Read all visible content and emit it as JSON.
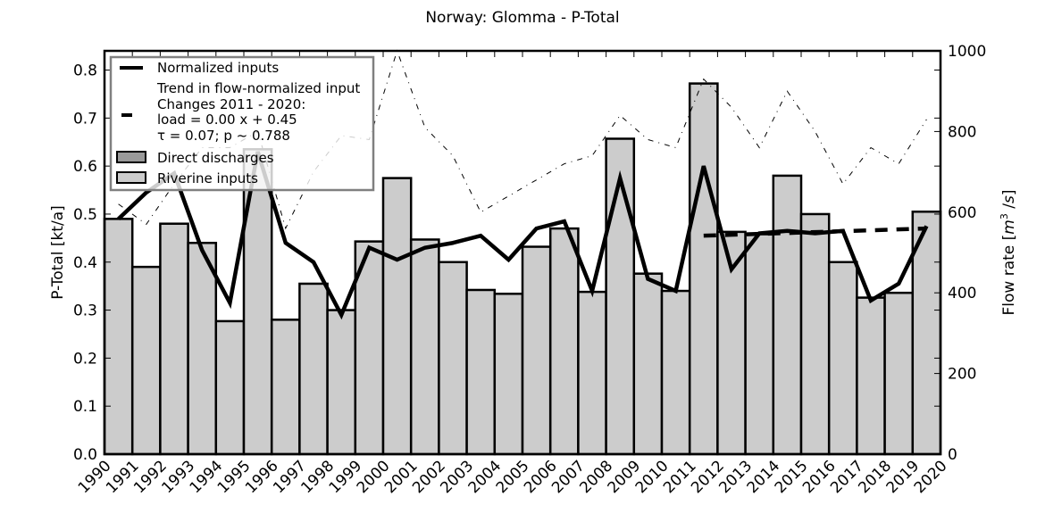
{
  "chart_data": {
    "type": "bar",
    "title": "Norway: Glomma - P-Total",
    "xlabel": "",
    "ylabel": "P-Total [kt/a]",
    "y2label": "Flow rate [m^3 /s]",
    "ylim": [
      0.0,
      0.84
    ],
    "y2lim": [
      0,
      1000
    ],
    "grid": false,
    "legend_position": "upper left",
    "x_tick_labels": [
      "1990",
      "1991",
      "1992",
      "1993",
      "1994",
      "1995",
      "1996",
      "1997",
      "1998",
      "1999",
      "2000",
      "2001",
      "2002",
      "2003",
      "2004",
      "2005",
      "2006",
      "2007",
      "2008",
      "2009",
      "2010",
      "2011",
      "2012",
      "2013",
      "2014",
      "2015",
      "2016",
      "2017",
      "2018",
      "2019",
      "2020"
    ],
    "y_ticks": [
      "0.0",
      "0.1",
      "0.2",
      "0.3",
      "0.4",
      "0.5",
      "0.6",
      "0.7",
      "0.8"
    ],
    "y2_ticks": [
      "0",
      "200",
      "400",
      "600",
      "800",
      "1000"
    ],
    "categories": [
      "1990",
      "1991",
      "1992",
      "1993",
      "1994",
      "1995",
      "1996",
      "1997",
      "1998",
      "1999",
      "2000",
      "2001",
      "2002",
      "2003",
      "2004",
      "2005",
      "2006",
      "2007",
      "2008",
      "2009",
      "2010",
      "2011",
      "2012",
      "2013",
      "2014",
      "2015",
      "2016",
      "2017",
      "2018",
      "2019"
    ],
    "series": [
      {
        "name": "Riverine inputs",
        "type": "bar",
        "axis": "left",
        "color": "#cccccc",
        "values": [
          0.49,
          0.39,
          0.48,
          0.44,
          0.277,
          0.635,
          0.28,
          0.355,
          0.3,
          0.443,
          0.575,
          0.447,
          0.4,
          0.342,
          0.334,
          0.432,
          0.47,
          0.338,
          0.657,
          0.376,
          0.34,
          0.772,
          0.463,
          0.458,
          0.58,
          0.5,
          0.4,
          0.326,
          0.336,
          0.505
        ]
      },
      {
        "name": "Direct discharges",
        "type": "bar",
        "axis": "left",
        "color": "#999999",
        "values": [
          0,
          0,
          0,
          0,
          0,
          0,
          0,
          0,
          0,
          0,
          0,
          0,
          0,
          0,
          0,
          0,
          0,
          0,
          0,
          0,
          0,
          0,
          0,
          0,
          0,
          0,
          0,
          0,
          0,
          0
        ]
      },
      {
        "name": "Normalized inputs",
        "type": "line",
        "axis": "left",
        "color": "#000000",
        "x": [
          1990.5,
          1991.5,
          1992.5,
          1993.5,
          1994.5,
          1995.5,
          1996.5,
          1997.5,
          1998.5,
          1999.5,
          2000.5,
          2001.5,
          2002.5,
          2003.5,
          2004.5,
          2005.5,
          2006.5,
          2007.5,
          2008.5,
          2009.5,
          2010.5,
          2011.5,
          2012.5,
          2013.5,
          2014.5,
          2015.5,
          2016.5,
          2017.5,
          2018.5,
          2019.5
        ],
        "values": [
          0.49,
          0.545,
          0.585,
          0.425,
          0.315,
          0.63,
          0.44,
          0.4,
          0.29,
          0.43,
          0.405,
          0.43,
          0.44,
          0.455,
          0.405,
          0.47,
          0.485,
          0.34,
          0.575,
          0.365,
          0.34,
          0.6,
          0.385,
          0.46,
          0.465,
          0.46,
          0.465,
          0.32,
          0.355,
          0.475
        ]
      },
      {
        "name": "Trend in flow-normalized input",
        "type": "line",
        "style": "dashed",
        "axis": "left",
        "color": "#000000",
        "x": [
          2011.5,
          2019.5
        ],
        "values": [
          0.455,
          0.47
        ]
      },
      {
        "name": "Flow rate",
        "type": "line",
        "style": "dashdot",
        "axis": "right",
        "color": "#000000",
        "x": [
          1990.5,
          1991.5,
          1992.5,
          1993.5,
          1994.5,
          1995.5,
          1996.5,
          1997.5,
          1998.5,
          1999.5,
          2000.5,
          2001.5,
          2002.5,
          2003.5,
          2004.5,
          2005.5,
          2006.5,
          2007.5,
          2008.5,
          2009.5,
          2010.5,
          2011.5,
          2012.5,
          2013.5,
          2014.5,
          2015.5,
          2016.5,
          2017.5,
          2018.5,
          2019.5
        ],
        "values": [
          620,
          570,
          670,
          760,
          760,
          800,
          560,
          700,
          790,
          780,
          1000,
          810,
          740,
          600,
          640,
          680,
          720,
          740,
          840,
          780,
          760,
          930,
          860,
          760,
          900,
          800,
          670,
          760,
          720,
          830
        ]
      }
    ],
    "annotations": [
      "Trend in flow-normalized input",
      "Changes 2011 - 2020:",
      "load =  0.00 x +  0.45",
      "τ =  0.07; p ~ 0.788"
    ]
  },
  "legend": {
    "items": [
      {
        "label": "Normalized inputs"
      },
      {
        "label": "Trend in flow-normalized input"
      },
      {
        "label": "Changes 2011 - 2020:"
      },
      {
        "label": "load =  0.00 x +  0.45"
      },
      {
        "label": "τ =  0.07; p ~ 0.788"
      },
      {
        "label": "Direct discharges"
      },
      {
        "label": "Riverine inputs"
      }
    ]
  }
}
